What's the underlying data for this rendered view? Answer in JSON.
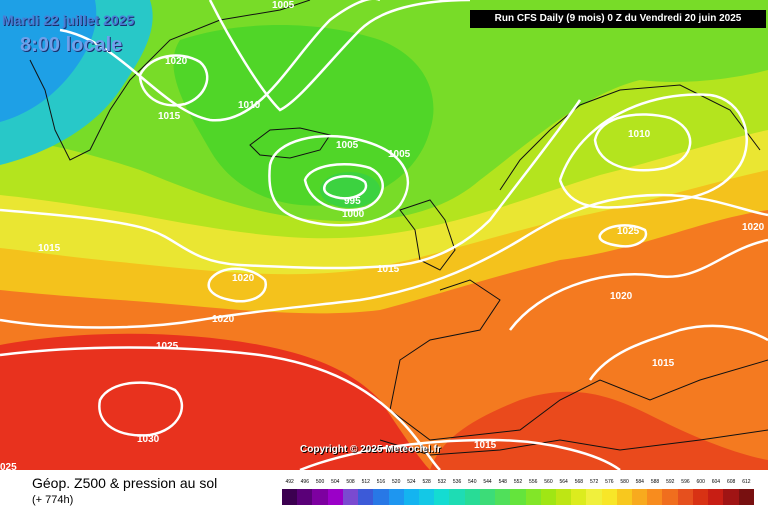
{
  "map": {
    "date_label": "Mardi 22 juillet 2025",
    "time_label": "8:00 locale",
    "run_info": "Run CFS Daily (9 mois) 0 Z du Vendredi 20 juin 2025",
    "copyright": "Copyright © 2025 Meteociel.fr",
    "isobar_labels": [
      "1005",
      "1020",
      "1015",
      "1010",
      "1005",
      "1005",
      "995",
      "1000",
      "1015",
      "1015",
      "1010",
      "1025",
      "1020",
      "1020",
      "1020",
      "1020",
      "1025",
      "1015",
      "1030",
      "1015",
      "025"
    ]
  },
  "legend": {
    "title": "Géop. Z500 & pression au sol",
    "subtitle": "(+ 774h)",
    "scale_values": [
      "492",
      "496",
      "500",
      "504",
      "508",
      "512",
      "516",
      "520",
      "524",
      "528",
      "532",
      "536",
      "540",
      "544",
      "548",
      "552",
      "556",
      "560",
      "564",
      "568",
      "572",
      "576",
      "580",
      "584",
      "588",
      "592",
      "596",
      "600",
      "604",
      "608",
      "612"
    ],
    "scale_colors": [
      "#3c0050",
      "#5a0078",
      "#7d00a0",
      "#9b00c8",
      "#7a4ad0",
      "#3c5ad8",
      "#2878e6",
      "#1e96f0",
      "#14b4f0",
      "#14c8e6",
      "#14dcd2",
      "#1edcb4",
      "#28dc96",
      "#3cdc78",
      "#50e05a",
      "#64e43c",
      "#82e628",
      "#a0e614",
      "#bee614",
      "#dcec1e",
      "#f0f03c",
      "#f8e628",
      "#f8c81e",
      "#f8aa1e",
      "#f88c1e",
      "#f06e1e",
      "#e6501e",
      "#d83214",
      "#c81e14",
      "#a01414",
      "#781010"
    ]
  }
}
